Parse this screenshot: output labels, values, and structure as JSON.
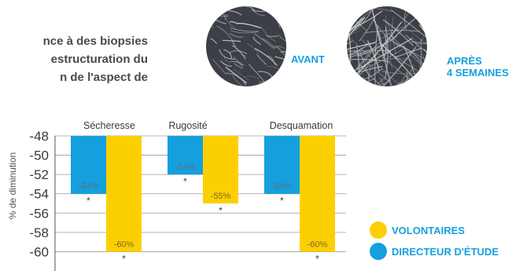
{
  "intro_lines": [
    "nce à des biopsies",
    "estructuration du",
    "n  de  l'aspect  de"
  ],
  "photos": {
    "before_label": "AVANT",
    "after_label_line1": "APRÈS",
    "after_label_line2": "4 SEMAINES"
  },
  "colors": {
    "volontaires": "#fcd000",
    "directeur": "#14a0de",
    "label_text": "#14a0de",
    "value_label_on_blue": "#5f6f7a",
    "value_label_on_yellow": "#7a6a20"
  },
  "chart_data": {
    "type": "bar",
    "categories": [
      "Sécheresse",
      "Rugosité",
      "Desquamation"
    ],
    "ylabel": "% de diminution",
    "yticks": [
      "-48",
      "-50",
      "-52",
      "-54",
      "-56",
      "-58",
      "-60"
    ],
    "ylim": [
      -48,
      -62
    ],
    "series": [
      {
        "name": "DIRECTEUR D'ÉTUDE",
        "values": [
          -54,
          -52,
          -54
        ],
        "labels": [
          "-54%",
          "-52%",
          "-54%"
        ],
        "color": "#14a0de"
      },
      {
        "name": "VOLONTAIRES",
        "values": [
          -60,
          -55,
          -60
        ],
        "labels": [
          "-60%",
          "-55%",
          "-60%"
        ],
        "color": "#fcd000"
      }
    ],
    "significance_mark": "*",
    "legend": [
      {
        "label": "VOLONTAIRES",
        "color": "#fcd000"
      },
      {
        "label": "DIRECTEUR D'ÉTUDE",
        "color": "#14a0de"
      }
    ],
    "legend_position": "right",
    "grid": true
  }
}
